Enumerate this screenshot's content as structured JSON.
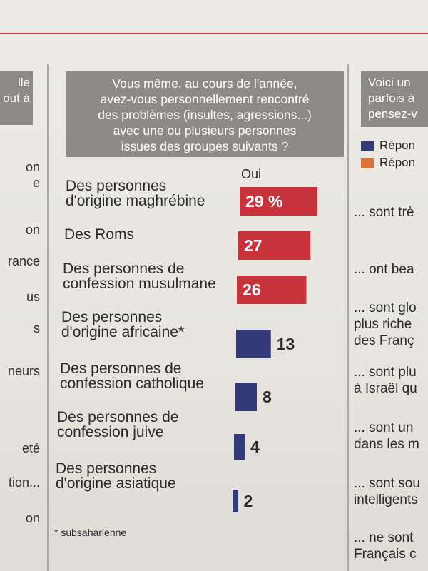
{
  "left_column": {
    "header_lines": [
      "lle",
      "out à"
    ],
    "fragments": [
      "on",
      "e",
      "on",
      "rance",
      "us",
      "s",
      "neurs",
      "eté",
      "tion...",
      "on"
    ]
  },
  "question": {
    "lines": [
      "Vous même, au cours de l'année,",
      "avez-vous personnellement rencontré",
      "des problèmes (insultes, agressions...)",
      "avec une ou plusieurs personnes",
      "issues des groupes suivants ?"
    ]
  },
  "oui_label": "Oui",
  "footnote": "* subsaharienne",
  "colors": {
    "red": "#c8323a",
    "blue": "#343a78",
    "orange": "#d9733a",
    "grey_header": "#8c8b88"
  },
  "chart_data": {
    "type": "bar",
    "orientation": "horizontal",
    "title": "",
    "value_label": "Oui",
    "unit": "%",
    "categories": [
      [
        "Des personnes",
        "d'origine maghrébine"
      ],
      [
        "Des Roms"
      ],
      [
        "Des personnes de",
        "confession musulmane"
      ],
      [
        "Des personnes",
        "d'origine africaine*"
      ],
      [
        "Des personnes de",
        "confession catholique"
      ],
      [
        "Des personnes de",
        "confession juive"
      ],
      [
        "Des personnes",
        "d'origine asiatique"
      ]
    ],
    "values": [
      29,
      27,
      26,
      13,
      8,
      4,
      2
    ],
    "value_labels": [
      "29 %",
      "27",
      "26",
      "13",
      "8",
      "4",
      "2"
    ],
    "bar_colors": [
      "#c8323a",
      "#c8323a",
      "#c8323a",
      "#343a78",
      "#343a78",
      "#343a78",
      "#343a78"
    ]
  },
  "right_column": {
    "header_lines": [
      "Voici un",
      "parfois à",
      "pensez-v"
    ],
    "legend": [
      {
        "label": "Répon",
        "color": "#343a78"
      },
      {
        "label": "Répon",
        "color": "#d9733a"
      }
    ],
    "fragments": [
      [
        "... sont trè"
      ],
      [
        "... ont bea"
      ],
      [
        "... sont glo",
        "plus riche",
        "des Franç"
      ],
      [
        "... sont plu",
        "à Israël qu"
      ],
      [
        "... sont un",
        "dans les m"
      ],
      [
        "... sont sou",
        "intelligents"
      ],
      [
        "... ne sont",
        "Français c"
      ]
    ]
  }
}
